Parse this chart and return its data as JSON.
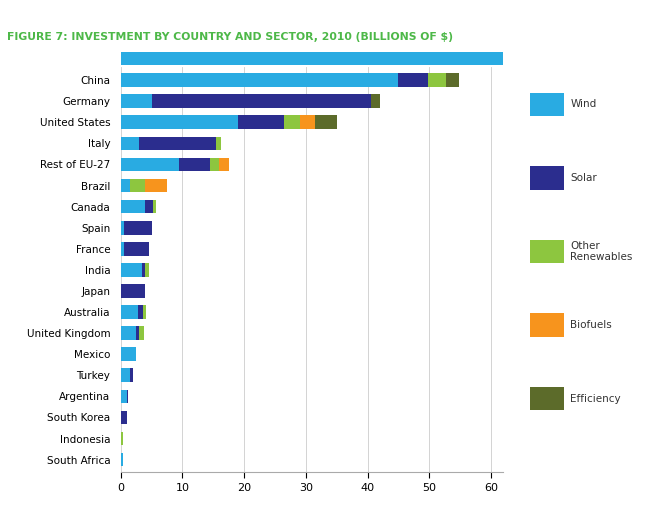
{
  "title": "FIGURE 7: INVESTMENT BY COUNTRY AND SECTOR, 2010 (BILLIONS OF $)",
  "title_color": "#4DB848",
  "countries": [
    "China",
    "Germany",
    "United States",
    "Italy",
    "Rest of EU-27",
    "Brazil",
    "Canada",
    "Spain",
    "France",
    "India",
    "Japan",
    "Australia",
    "United Kingdom",
    "Mexico",
    "Turkey",
    "Argentina",
    "South Korea",
    "Indonesia",
    "South Africa"
  ],
  "sectors": [
    "Wind",
    "Solar",
    "Other Renewables",
    "Biofuels",
    "Efficiency"
  ],
  "colors": {
    "Wind": "#29ABE2",
    "Solar": "#2B2D8E",
    "Other Renewables": "#8DC63F",
    "Biofuels": "#F7941D",
    "Efficiency": "#5C6B2A"
  },
  "data": {
    "China": [
      44.9,
      4.9,
      3.0,
      0.0,
      2.0
    ],
    "Germany": [
      5.0,
      35.5,
      0.0,
      0.0,
      1.5
    ],
    "United States": [
      19.0,
      7.5,
      2.5,
      2.5,
      3.5
    ],
    "Italy": [
      3.0,
      12.5,
      0.8,
      0.0,
      0.0
    ],
    "Rest of EU-27": [
      9.5,
      5.0,
      1.5,
      1.5,
      0.0
    ],
    "Brazil": [
      1.5,
      0.0,
      2.5,
      3.5,
      0.0
    ],
    "Canada": [
      4.0,
      1.2,
      0.5,
      0.0,
      0.0
    ],
    "Spain": [
      0.5,
      4.5,
      0.0,
      0.0,
      0.0
    ],
    "France": [
      0.5,
      4.0,
      0.0,
      0.0,
      0.0
    ],
    "India": [
      3.5,
      0.5,
      0.5,
      0.0,
      0.0
    ],
    "Japan": [
      0.0,
      4.0,
      0.0,
      0.0,
      0.0
    ],
    "Australia": [
      2.8,
      0.8,
      0.5,
      0.0,
      0.0
    ],
    "United Kingdom": [
      2.5,
      0.5,
      0.8,
      0.0,
      0.0
    ],
    "Mexico": [
      2.5,
      0.0,
      0.0,
      0.0,
      0.0
    ],
    "Turkey": [
      1.5,
      0.4,
      0.0,
      0.0,
      0.0
    ],
    "Argentina": [
      1.0,
      0.2,
      0.0,
      0.0,
      0.0
    ],
    "South Korea": [
      0.0,
      1.0,
      0.0,
      0.0,
      0.0
    ],
    "Indonesia": [
      0.0,
      0.0,
      0.4,
      0.0,
      0.0
    ],
    "South Africa": [
      0.4,
      0.0,
      0.0,
      0.0,
      0.0
    ]
  },
  "xlim": [
    0,
    62
  ],
  "xticks": [
    0,
    10,
    20,
    30,
    40,
    50,
    60
  ],
  "header_color": "#29ABE2",
  "background_color": "#FFFFFF",
  "bar_height": 0.65
}
